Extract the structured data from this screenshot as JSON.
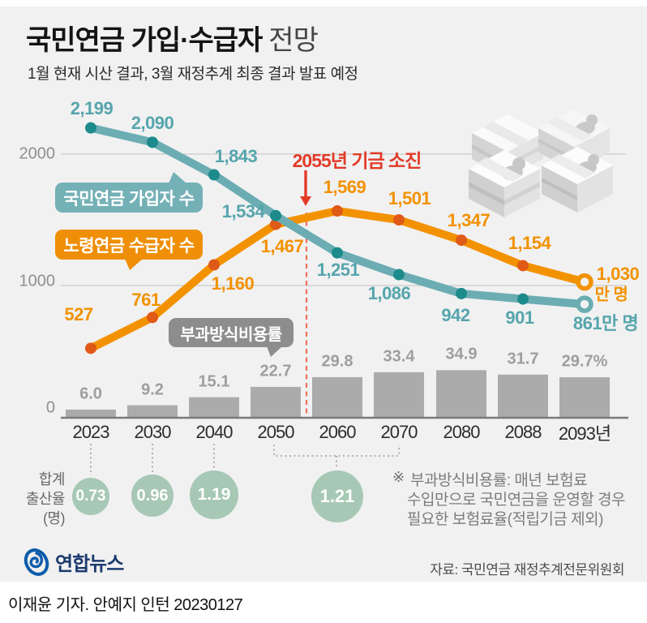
{
  "page": {
    "bg_color": "#f1f1f2",
    "accent_teal": "#6badb3",
    "accent_orange": "#f39200",
    "accent_red": "#e23b28",
    "bar_gray": "#ababab",
    "circle_green": "#a7c8b4"
  },
  "header": {
    "title_bold": "국민연금 가입·수급자",
    "title_light": "전망",
    "subtitle": "1월 현재 시산 결과, 3월 재정추계 최종 결과 발표 예정"
  },
  "chart_data": {
    "type": "line+bar",
    "categories": [
      "2023",
      "2030",
      "2040",
      "2050",
      "2060",
      "2070",
      "2080",
      "2088",
      "2093년"
    ],
    "series": [
      {
        "name": "국민연금 가입자 수",
        "type": "line",
        "unit": "만 명",
        "color": "#6badb3",
        "dot_color": "#1d8b8b",
        "values": [
          2199,
          2090,
          1843,
          1534,
          1251,
          1086,
          942,
          901,
          861
        ],
        "labels": [
          "2,199",
          "2,090",
          "1,843",
          "1,534",
          "1,251",
          "1,086",
          "942",
          "901",
          "861만 명"
        ]
      },
      {
        "name": "노령연금 수급자 수",
        "type": "line",
        "unit": "만 명",
        "color": "#f39200",
        "dot_color": "#e05a17",
        "values": [
          527,
          761,
          1160,
          1467,
          1569,
          1501,
          1347,
          1154,
          1030
        ],
        "labels": [
          "527",
          "761",
          "1,160",
          "1,467",
          "1,569",
          "1,501",
          "1,347",
          "1,154",
          "1,030"
        ],
        "last_suffix": "만 명"
      },
      {
        "name": "부과방식비용률",
        "type": "bar",
        "unit": "%",
        "color": "#ababab",
        "values": [
          6.0,
          9.2,
          15.1,
          22.7,
          29.8,
          33.4,
          34.9,
          31.7,
          29.7
        ],
        "labels": [
          "6.0",
          "9.2",
          "15.1",
          "22.7",
          "29.8",
          "33.4",
          "34.9",
          "31.7",
          "29.7%"
        ]
      }
    ],
    "y_axis": {
      "ticks": [
        "2000",
        "1000",
        "0"
      ],
      "range": [
        0,
        2400
      ],
      "grid": true
    },
    "legend": {
      "line1": "국민연금 가입자 수",
      "line2": "노령연금 수급자 수",
      "bar": "부과방식비용률"
    },
    "annotations": {
      "fund_depletion": {
        "text": "2055년 기금 소진",
        "year": "2055"
      }
    }
  },
  "fertility": {
    "axis_label_lines": [
      "합계",
      "출산율",
      "(명)"
    ],
    "circles": [
      {
        "year": "2023",
        "value": "0.73"
      },
      {
        "year": "2030",
        "value": "0.96"
      },
      {
        "year": "2040",
        "value": "1.19"
      },
      {
        "year": "2050-2070",
        "value": "1.21"
      }
    ]
  },
  "footnote": {
    "marker": "※",
    "lines": [
      "부과방식비용률: 매년 보험료",
      "수입만으로 국민연금을 운영할 경우",
      "필요한 보험료율(적립기금 제외)"
    ]
  },
  "source": "자료: 국민연금 재정추계전문위원회",
  "footer": {
    "logo_text": "연합뉴스",
    "credit": "이재윤 기자. 안예지 인턴  20230127"
  }
}
